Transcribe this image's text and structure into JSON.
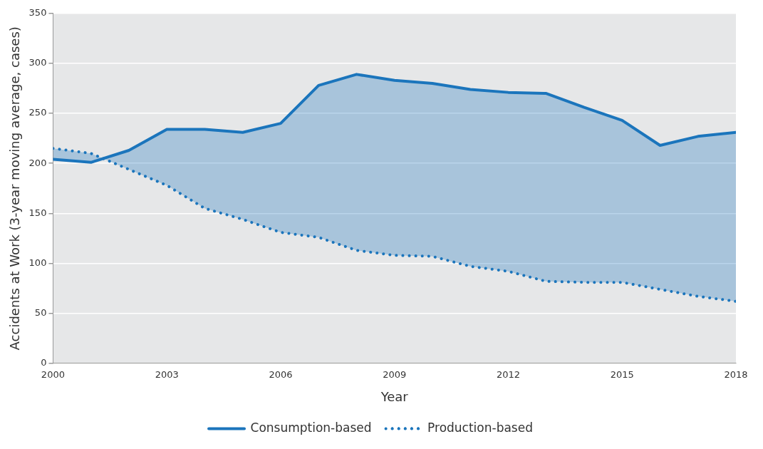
{
  "chart_data": {
    "type": "line",
    "xlabel": "Year",
    "ylabel": "Accidents at Work (3-year moving average, cases)",
    "x": [
      2000,
      2001,
      2002,
      2003,
      2004,
      2005,
      2006,
      2007,
      2008,
      2009,
      2010,
      2011,
      2012,
      2013,
      2014,
      2015,
      2016,
      2017,
      2018
    ],
    "series": [
      {
        "name": "Consumption-based",
        "color": "#1b75bc",
        "line_style": "solid",
        "values": [
          204,
          201,
          213,
          234,
          234,
          231,
          240,
          278,
          289,
          283,
          280,
          274,
          271,
          270,
          256,
          243,
          218,
          227,
          231
        ],
        "lower": [
          215,
          210,
          194,
          178,
          155,
          144,
          131,
          126,
          113,
          108,
          107,
          97,
          92,
          82,
          81,
          81,
          74,
          67,
          62
        ],
        "upper": [
          204,
          201,
          213,
          234,
          234,
          231,
          240,
          278,
          289,
          283,
          280,
          274,
          271,
          270,
          256,
          243,
          218,
          227,
          231
        ]
      },
      {
        "name": "Production-based",
        "color": "#1b75bc",
        "line_style": "dotted",
        "values": [
          215,
          210,
          194,
          178,
          155,
          144,
          131,
          126,
          113,
          108,
          107,
          97,
          92,
          82,
          81,
          81,
          74,
          67,
          62
        ]
      }
    ],
    "xlim": [
      2000,
      2018
    ],
    "xticks": [
      2000,
      2003,
      2006,
      2009,
      2012,
      2015,
      2018
    ],
    "ylim": [
      0,
      350
    ],
    "yticks": [
      0,
      50,
      100,
      150,
      200,
      250,
      300,
      350
    ],
    "grid": "y",
    "legend": "bottom",
    "marker": "none"
  }
}
